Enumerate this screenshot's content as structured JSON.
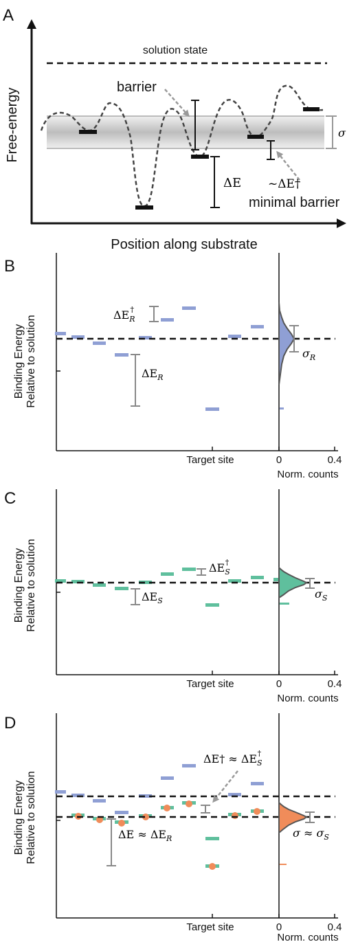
{
  "panel_a": {
    "letter": "A",
    "y_axis_label": "Free-energy",
    "x_axis_label": "Position along substrate",
    "solution_state_label": "solution state",
    "barrier_label": "barrier",
    "delta_e_label": "ΔE",
    "sigma_label": "σ",
    "approx_barrier_label": "~ΔE†",
    "minimal_barrier_label": "minimal barrier"
  },
  "panel_b": {
    "letter": "B",
    "y_label_line1": "Binding Energy",
    "y_label_line2": "Relative to solution",
    "target_site_label": "Target site",
    "hist_tick_0": "0",
    "hist_tick_max": "0.4",
    "hist_axis_label": "Norm. counts",
    "barrier_annotation": "ΔE",
    "barrier_annotation_sub": "R",
    "barrier_annotation_sup": "†",
    "depth_annotation": "ΔE",
    "depth_annotation_sub": "R",
    "width_annotation": "σ",
    "width_annotation_sub": "R",
    "color": "#8f9fd4"
  },
  "panel_c": {
    "letter": "C",
    "y_label_line1": "Binding Energy",
    "y_label_line2": "Relative to solution",
    "target_site_label": "Target site",
    "hist_tick_0": "0",
    "hist_tick_max": "0.4",
    "hist_axis_label": "Norm. counts",
    "barrier_annotation": "ΔE",
    "barrier_annotation_sub": "S",
    "barrier_annotation_sup": "†",
    "depth_annotation": "ΔE",
    "depth_annotation_sub": "S",
    "width_annotation": "σ",
    "width_annotation_sub": "S",
    "color": "#5fbf9d"
  },
  "panel_d": {
    "letter": "D",
    "y_label_line1": "Binding Energy",
    "y_label_line2": "Relative to solution",
    "target_site_label": "Target site",
    "hist_tick_0": "0",
    "hist_tick_max": "0.4",
    "hist_axis_label": "Norm. counts",
    "barrier_annotation": "ΔE† ≈ ΔE",
    "barrier_annotation_sub": "S",
    "barrier_annotation_sup": "†",
    "depth_annotation": "ΔE ≈ ΔE",
    "depth_annotation_sub": "R",
    "width_annotation": "σ ≈ σ",
    "width_annotation_sub": "S",
    "color_orange": "#f08c5a"
  }
}
